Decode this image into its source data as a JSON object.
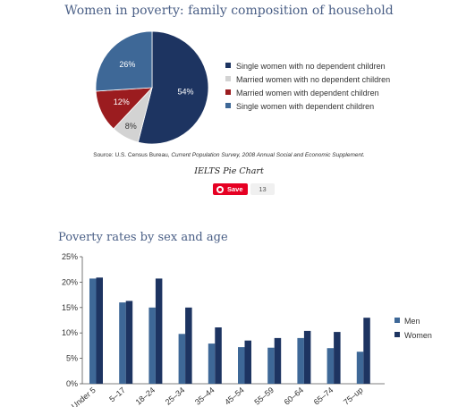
{
  "pie_title": "Women in poverty: family composition of household",
  "source_prefix": "Source: U.S. Census Bureau, ",
  "source_italic": "Current Population Survey, 2008 Annual Social and Economic Supplement.",
  "caption": "IELTS Pie Chart",
  "save_button": {
    "label": "Save",
    "count": "13"
  },
  "bar_title": "Poverty rates by sex and age",
  "colors": {
    "navy": "#1d3461",
    "light_gray": "#d3d3d3",
    "dark_red": "#9b1c1f",
    "steel_blue": "#3e6897",
    "men": "#3e6897",
    "women": "#1d3461"
  },
  "chart_data": [
    {
      "type": "pie",
      "title": "Women in poverty: family composition of household",
      "slices": [
        {
          "label": "Single women with no dependent children",
          "value": 54,
          "display": "54%",
          "color": "#1d3461"
        },
        {
          "label": "Married women with no dependent children",
          "value": 8,
          "display": "8%",
          "color": "#d3d3d3"
        },
        {
          "label": "Married women with dependent children",
          "value": 12,
          "display": "12%",
          "color": "#9b1c1f"
        },
        {
          "label": "Single women with dependent children",
          "value": 26,
          "display": "26%",
          "color": "#3e6897"
        }
      ],
      "legend_placement": "right"
    },
    {
      "type": "bar",
      "title": "Poverty rates by sex and age",
      "categories": [
        "Under 5",
        "5–17",
        "18–24",
        "25–34",
        "35–44",
        "45–54",
        "55–59",
        "60–64",
        "65–74",
        "75–up"
      ],
      "series": [
        {
          "name": "Men",
          "values": [
            20.7,
            16.0,
            15.0,
            9.8,
            7.9,
            7.2,
            7.1,
            9.0,
            7.0,
            6.3
          ],
          "color": "#3e6897"
        },
        {
          "name": "Women",
          "values": [
            20.9,
            16.3,
            20.7,
            15.0,
            11.1,
            8.5,
            9.0,
            10.4,
            10.2,
            13.0
          ],
          "color": "#1d3461"
        }
      ],
      "ylim": [
        0,
        25
      ],
      "yticks": [
        "0%",
        "5%",
        "10%",
        "15%",
        "20%",
        "25%"
      ],
      "ytick_values": [
        0,
        5,
        10,
        15,
        20,
        25
      ],
      "grid": false,
      "legend_placement": "right"
    }
  ]
}
